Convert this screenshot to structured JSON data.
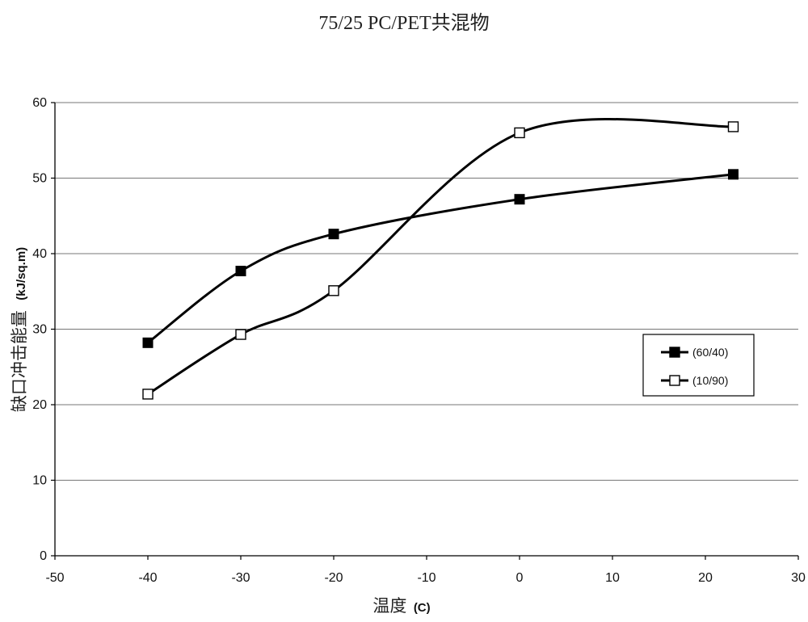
{
  "chart_data": {
    "type": "line",
    "title": "75/25 PC/PET共混物",
    "xlabel": {
      "main": "温度",
      "unit": "(C)"
    },
    "ylabel": {
      "main": "缺口冲击能量",
      "unit": "(kJ/sq.m)"
    },
    "xlim": [
      -50,
      30
    ],
    "ylim": [
      0,
      60
    ],
    "xticks": [
      -50,
      -40,
      -30,
      -20,
      -10,
      0,
      10,
      20,
      30
    ],
    "yticks": [
      0,
      10,
      20,
      30,
      40,
      50,
      60
    ],
    "grid": "horizontal",
    "legend_position": "right",
    "series": [
      {
        "name": "(60/40)",
        "marker": "filled-square",
        "color": "#000000",
        "x": [
          -40,
          -30,
          -20,
          0,
          23
        ],
        "y": [
          28.2,
          37.7,
          42.6,
          47.2,
          50.5
        ]
      },
      {
        "name": "(10/90)",
        "marker": "open-square",
        "color": "#000000",
        "x": [
          -40,
          -30,
          -20,
          0,
          23
        ],
        "y": [
          21.4,
          29.3,
          35.1,
          56.0,
          56.8
        ]
      }
    ]
  }
}
